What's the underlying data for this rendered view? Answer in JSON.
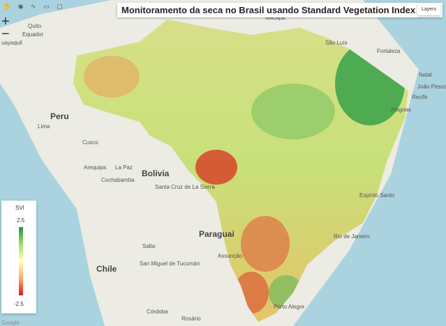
{
  "header": {
    "title": "Monitoramento da seca no Brasil usando Standard Vegetation Index (SVI)",
    "layers_button": "Layers"
  },
  "legend": {
    "title": "SVI",
    "max_label": "2.5",
    "min_label": "-2.5"
  },
  "map_labels": [
    "Equador",
    "Quito",
    "uayaquil",
    "Peru",
    "Lima",
    "Cusco",
    "Arequipa",
    "La Paz",
    "Bolivia",
    "Cochabamba",
    "Santa Cruz de La Sierra",
    "Paraguai",
    "Assunção",
    "Salta",
    "San Miguel de Tucumán",
    "Chile",
    "Córdoba",
    "Rosário",
    "Porto Alegre",
    "Rio de Janeiro",
    "São Luís",
    "Fortaleza",
    "Natal",
    "João Pessoa",
    "Recife",
    "Alagoas",
    "Espírito Santo",
    "Macapá"
  ],
  "attribution": "Google"
}
